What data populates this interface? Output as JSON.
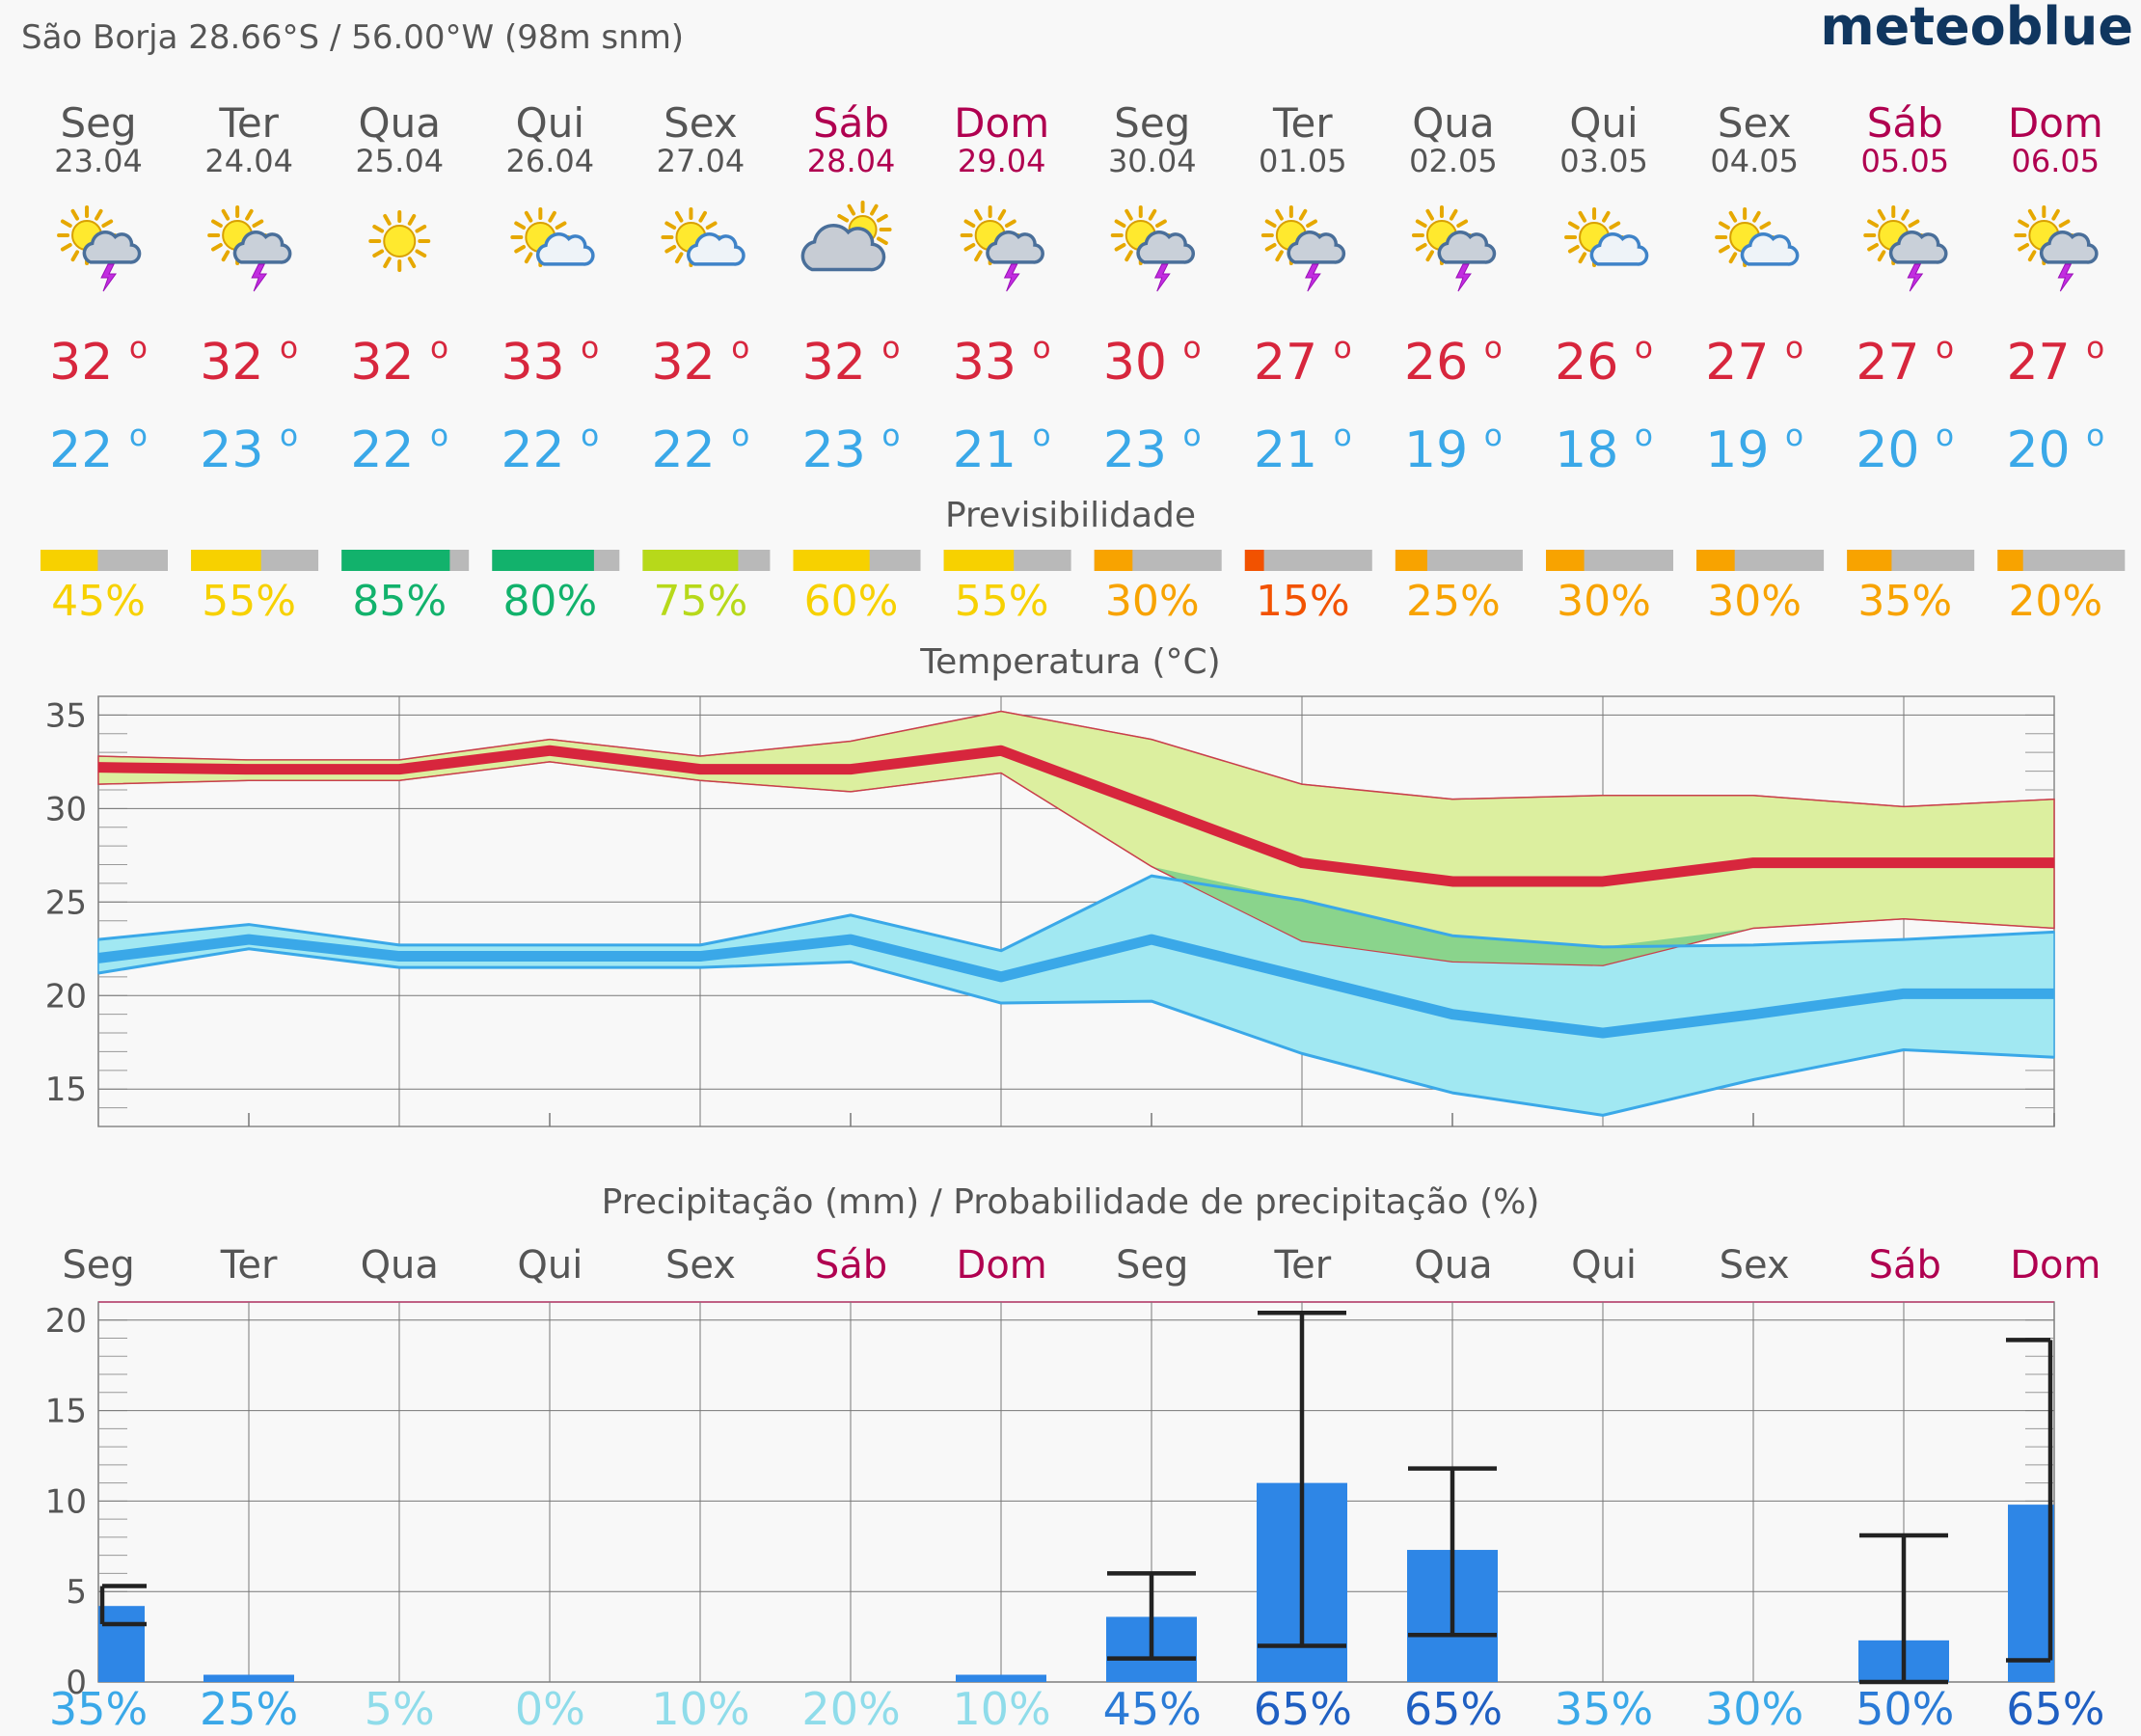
{
  "header": {
    "location": "São Borja  28.66°S / 56.00°W (98m snm)",
    "brand": "meteoblue",
    "brand_color": "#10365f"
  },
  "colors": {
    "max_temp": "#d7263d",
    "min_temp": "#3aa8e8",
    "weekend_day": "#b00050",
    "weekday": "#555555",
    "bar_fill": "#2e86e6",
    "err_bar": "#222222",
    "max_band": "#dcef9f",
    "min_band": "#a1e8f2",
    "overlap_band": "#8ad48c",
    "gray_track": "#b9b9b9"
  },
  "days": [
    {
      "name": "Seg",
      "date": "23.04",
      "weekend": false,
      "icon": "sun-cloud-thunder-icon",
      "tmax": "32°",
      "tmin": "22°",
      "predictability": 45,
      "pred_color": "#f7d100",
      "precip_prob": "35%",
      "prob_color": "#3aa8e8"
    },
    {
      "name": "Ter",
      "date": "24.04",
      "weekend": false,
      "icon": "sun-cloud-thunder-icon",
      "tmax": "32°",
      "tmin": "23°",
      "predictability": 55,
      "pred_color": "#f7d100",
      "precip_prob": "25%",
      "prob_color": "#3aa8e8"
    },
    {
      "name": "Qua",
      "date": "25.04",
      "weekend": false,
      "icon": "sun-icon",
      "tmax": "32°",
      "tmin": "22°",
      "predictability": 85,
      "pred_color": "#12b26c",
      "precip_prob": "5%",
      "prob_color": "#8fdcea"
    },
    {
      "name": "Qui",
      "date": "26.04",
      "weekend": false,
      "icon": "sun-cloud-icon",
      "tmax": "33°",
      "tmin": "22°",
      "predictability": 80,
      "pred_color": "#12b26c",
      "precip_prob": "0%",
      "prob_color": "#8fdcea"
    },
    {
      "name": "Sex",
      "date": "27.04",
      "weekend": false,
      "icon": "sun-cloud-icon",
      "tmax": "32°",
      "tmin": "22°",
      "predictability": 75,
      "pred_color": "#b7d91a",
      "precip_prob": "10%",
      "prob_color": "#8fdcea"
    },
    {
      "name": "Sáb",
      "date": "28.04",
      "weekend": true,
      "icon": "cloud-sun-icon",
      "tmax": "32°",
      "tmin": "23°",
      "predictability": 60,
      "pred_color": "#f7d100",
      "precip_prob": "20%",
      "prob_color": "#8fdcea"
    },
    {
      "name": "Dom",
      "date": "29.04",
      "weekend": true,
      "icon": "sun-cloud-thunder-icon",
      "tmax": "33°",
      "tmin": "21°",
      "predictability": 55,
      "pred_color": "#f7d100",
      "precip_prob": "10%",
      "prob_color": "#8fdcea"
    },
    {
      "name": "Seg",
      "date": "30.04",
      "weekend": false,
      "icon": "sun-cloud-thunder-icon",
      "tmax": "30°",
      "tmin": "23°",
      "predictability": 30,
      "pred_color": "#f8a300",
      "precip_prob": "45%",
      "prob_color": "#2a7ad6"
    },
    {
      "name": "Ter",
      "date": "01.05",
      "weekend": false,
      "icon": "sun-cloud-thunder-icon",
      "tmax": "27°",
      "tmin": "21°",
      "predictability": 15,
      "pred_color": "#f25200",
      "precip_prob": "65%",
      "prob_color": "#1f5fc2"
    },
    {
      "name": "Qua",
      "date": "02.05",
      "weekend": false,
      "icon": "sun-cloud-thunder-icon",
      "tmax": "26°",
      "tmin": "19°",
      "predictability": 25,
      "pred_color": "#f8a300",
      "precip_prob": "65%",
      "prob_color": "#1f5fc2"
    },
    {
      "name": "Qui",
      "date": "03.05",
      "weekend": false,
      "icon": "sun-cloud-icon",
      "tmax": "26°",
      "tmin": "18°",
      "predictability": 30,
      "pred_color": "#f8a300",
      "precip_prob": "35%",
      "prob_color": "#3aa8e8"
    },
    {
      "name": "Sex",
      "date": "04.05",
      "weekend": false,
      "icon": "sun-cloud-icon",
      "tmax": "27°",
      "tmin": "19°",
      "predictability": 30,
      "pred_color": "#f8a300",
      "precip_prob": "30%",
      "prob_color": "#3aa8e8"
    },
    {
      "name": "Sáb",
      "date": "05.05",
      "weekend": true,
      "icon": "sun-cloud-thunder-icon",
      "tmax": "27°",
      "tmin": "20°",
      "predictability": 35,
      "pred_color": "#f8a300",
      "precip_prob": "50%",
      "prob_color": "#2a7ad6"
    },
    {
      "name": "Dom",
      "date": "06.05",
      "weekend": true,
      "icon": "sun-cloud-thunder-icon",
      "tmax": "27°",
      "tmin": "20°",
      "predictability": 20,
      "pred_color": "#f8a300",
      "precip_prob": "65%",
      "prob_color": "#1f5fc2"
    }
  ],
  "predictability_title": "Previsibilidade",
  "chart_data": [
    {
      "type": "line",
      "title": "Temperatura (°C)",
      "xlabel": "",
      "ylabel": "",
      "ylim": [
        13,
        36
      ],
      "yticks": [
        15,
        20,
        25,
        30,
        35
      ],
      "categories": [
        "23.04",
        "24.04",
        "25.04",
        "26.04",
        "27.04",
        "28.04",
        "29.04",
        "30.04",
        "01.05",
        "02.05",
        "03.05",
        "04.05",
        "05.05",
        "06.05"
      ],
      "grid": true,
      "series": [
        {
          "role": "tmax",
          "values": [
            32.2,
            32.1,
            32.1,
            33.1,
            32.1,
            32.1,
            33.1,
            30.1,
            27.1,
            26.1,
            26.1,
            27.1,
            27.1,
            27.1
          ]
        },
        {
          "role": "tmax_upper",
          "values": [
            32.8,
            32.6,
            32.6,
            33.7,
            32.8,
            33.6,
            35.2,
            33.7,
            31.3,
            30.5,
            30.7,
            30.7,
            30.1,
            30.5
          ]
        },
        {
          "role": "tmax_lower",
          "values": [
            31.3,
            31.5,
            31.5,
            32.5,
            31.5,
            30.9,
            31.9,
            26.9,
            22.9,
            21.8,
            21.6,
            23.6,
            24.1,
            23.6
          ]
        },
        {
          "role": "tmin",
          "values": [
            22.0,
            23.0,
            22.1,
            22.1,
            22.1,
            23.0,
            21.0,
            23.0,
            21.0,
            19.0,
            18.0,
            19.0,
            20.1,
            20.1
          ]
        },
        {
          "role": "tmin_upper",
          "values": [
            23.0,
            23.8,
            22.7,
            22.7,
            22.7,
            24.3,
            22.4,
            26.4,
            25.1,
            23.2,
            22.6,
            22.7,
            23.0,
            23.4
          ]
        },
        {
          "role": "tmin_lower",
          "values": [
            21.2,
            22.5,
            21.5,
            21.5,
            21.5,
            21.8,
            19.6,
            19.7,
            16.9,
            14.8,
            13.6,
            15.5,
            17.1,
            16.7
          ]
        }
      ]
    },
    {
      "type": "bar",
      "title": "Precipitação (mm) / Probabilidade de precipitação (%)",
      "xlabel": "",
      "ylabel": "",
      "ylim": [
        0,
        21
      ],
      "yticks": [
        0,
        5,
        10,
        15,
        20
      ],
      "categories": [
        "Seg",
        "Ter",
        "Qua",
        "Qui",
        "Sex",
        "Sáb",
        "Dom",
        "Seg",
        "Ter",
        "Qua",
        "Qui",
        "Sex",
        "Sáb",
        "Dom"
      ],
      "grid": true,
      "series": [
        {
          "role": "precipitation_mm",
          "values": [
            4.2,
            0.4,
            0,
            0,
            0,
            0,
            0.4,
            3.6,
            11.0,
            7.3,
            0,
            0,
            2.3,
            9.8
          ]
        },
        {
          "role": "range_low",
          "values": [
            3.2,
            null,
            null,
            null,
            null,
            null,
            null,
            1.3,
            2.0,
            2.6,
            null,
            null,
            0,
            1.2
          ]
        },
        {
          "role": "range_high",
          "values": [
            5.3,
            null,
            null,
            null,
            null,
            null,
            null,
            6.0,
            20.4,
            11.8,
            null,
            null,
            8.1,
            18.9
          ]
        }
      ]
    }
  ]
}
